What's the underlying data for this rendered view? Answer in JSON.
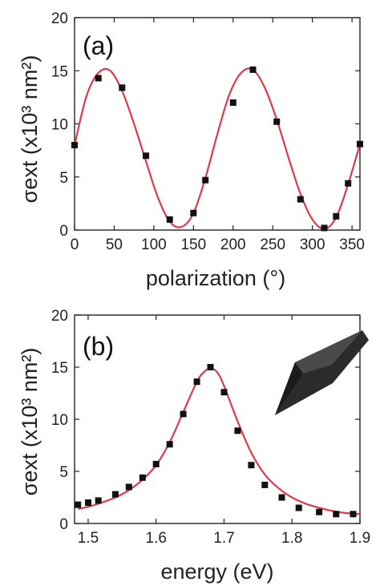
{
  "colors": {
    "fit": "#e03a4a",
    "marker": "#111111",
    "axis": "#222222"
  },
  "chart_data": [
    {
      "type": "scatter",
      "panel_label": "(a)",
      "xlabel": "polarization (°)",
      "ylabel": "σext (x10³ nm²)",
      "xlim": [
        0,
        360
      ],
      "ylim": [
        0,
        20
      ],
      "xticks": [
        0,
        50,
        100,
        150,
        200,
        250,
        300,
        350
      ],
      "yticks": [
        0,
        5,
        10,
        15,
        20
      ],
      "grid": false,
      "legend": "none",
      "series": [
        {
          "kind": "markers",
          "x": [
            0,
            30,
            60,
            90,
            120,
            150,
            165,
            200,
            225,
            255,
            285,
            315,
            330,
            345,
            360
          ],
          "y": [
            8.0,
            14.3,
            13.4,
            7.0,
            1.0,
            1.6,
            4.7,
            12.0,
            15.1,
            10.2,
            2.9,
            0.2,
            1.3,
            4.4,
            8.1
          ]
        },
        {
          "kind": "fit",
          "x": [
            0,
            15,
            30,
            45,
            60,
            75,
            90,
            105,
            120,
            135,
            150,
            165,
            180,
            195,
            210,
            225,
            240,
            255,
            270,
            285,
            300,
            315,
            330,
            345,
            360
          ],
          "y": [
            8.0,
            12.6,
            14.8,
            15.0,
            13.1,
            10.0,
            6.5,
            3.1,
            0.8,
            0.3,
            1.6,
            4.9,
            9.0,
            12.7,
            14.8,
            15.1,
            13.4,
            10.4,
            6.8,
            3.4,
            1.0,
            0.1,
            1.2,
            4.3,
            8.1
          ]
        }
      ]
    },
    {
      "type": "scatter",
      "panel_label": "(b)",
      "xlabel": "energy (eV)",
      "ylabel": "σext (x10³ nm²)",
      "xlim": [
        1.48,
        1.9
      ],
      "ylim": [
        0,
        20
      ],
      "xticks": [
        1.5,
        1.6,
        1.7,
        1.8,
        1.9
      ],
      "yticks": [
        0,
        5,
        10,
        15,
        20
      ],
      "grid": false,
      "legend": "none",
      "inset": "bipyramid-particle",
      "series": [
        {
          "kind": "markers",
          "x": [
            1.485,
            1.5,
            1.515,
            1.54,
            1.56,
            1.58,
            1.6,
            1.62,
            1.64,
            1.66,
            1.68,
            1.7,
            1.72,
            1.74,
            1.76,
            1.785,
            1.81,
            1.84,
            1.865,
            1.89
          ],
          "y": [
            1.8,
            2.0,
            2.2,
            2.8,
            3.5,
            4.4,
            5.7,
            7.6,
            10.5,
            13.6,
            15.0,
            12.6,
            8.9,
            5.6,
            3.7,
            2.5,
            1.5,
            1.1,
            0.9,
            0.9
          ]
        },
        {
          "kind": "fit",
          "x": [
            1.485,
            1.5,
            1.52,
            1.54,
            1.56,
            1.58,
            1.6,
            1.62,
            1.64,
            1.66,
            1.67,
            1.68,
            1.69,
            1.7,
            1.72,
            1.74,
            1.76,
            1.78,
            1.8,
            1.82,
            1.84,
            1.86,
            1.88,
            1.9
          ],
          "y": [
            1.4,
            1.6,
            2.0,
            2.5,
            3.2,
            4.2,
            5.6,
            7.8,
            10.7,
            13.6,
            14.5,
            14.9,
            14.5,
            13.2,
            9.8,
            6.8,
            4.7,
            3.4,
            2.5,
            1.9,
            1.5,
            1.2,
            1.0,
            0.9
          ]
        }
      ]
    }
  ]
}
